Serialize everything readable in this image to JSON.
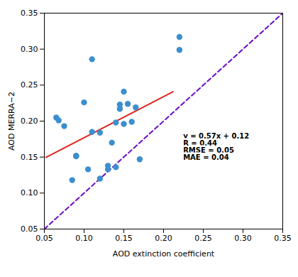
{
  "chart_data": {
    "type": "scatter",
    "xlabel": "AOD extinction coefficient",
    "ylabel": "AOD MERRA−2",
    "xlim": [
      0.05,
      0.35
    ],
    "ylim": [
      0.05,
      0.35
    ],
    "xticks": [
      0.05,
      {
        "value": 0.1,
        "label": "0.10"
      },
      0.15,
      {
        "value": 0.2,
        "label": "0.20"
      },
      0.25,
      {
        "value": 0.3,
        "label": "0.30"
      },
      0.35
    ],
    "yticks": [
      0.05,
      {
        "value": 0.1,
        "label": "0.10"
      },
      0.15,
      {
        "value": 0.2,
        "label": "0.20"
      },
      0.25,
      {
        "value": 0.3,
        "label": "0.30"
      },
      0.35
    ],
    "grid": false,
    "series": [
      {
        "type": "scatter",
        "color": "#3c8fce",
        "marker": "circle",
        "x": [
          0.065,
          0.068,
          0.075,
          0.085,
          0.09,
          0.09,
          0.1,
          0.105,
          0.11,
          0.11,
          0.12,
          0.12,
          0.13,
          0.13,
          0.135,
          0.14,
          0.14,
          0.145,
          0.145,
          0.15,
          0.15,
          0.155,
          0.16,
          0.165,
          0.17,
          0.22,
          0.22
        ],
        "values": [
          0.205,
          0.201,
          0.193,
          0.118,
          0.152,
          0.151,
          0.226,
          0.133,
          0.286,
          0.185,
          0.184,
          0.12,
          0.133,
          0.138,
          0.17,
          0.136,
          0.198,
          0.217,
          0.223,
          0.196,
          0.241,
          0.224,
          0.199,
          0.219,
          0.147,
          0.317,
          0.299
        ]
      },
      {
        "type": "line",
        "color": "#6b0ac9",
        "line_style": "dashed",
        "x": [
          0.05,
          0.35
        ],
        "values": [
          0.05,
          0.35
        ]
      },
      {
        "type": "line",
        "color": "#e0231a",
        "line_style": "solid",
        "x": [
          0.052,
          0.212
        ],
        "values": [
          0.14964,
          0.24084
        ]
      }
    ],
    "annotations": [
      {
        "text": "y = 0.57x + 0.12\nR = 0.44\nRMSE = 0.05\nMAE = 0.04",
        "x": 0.222,
        "y": 0.143
      }
    ]
  }
}
